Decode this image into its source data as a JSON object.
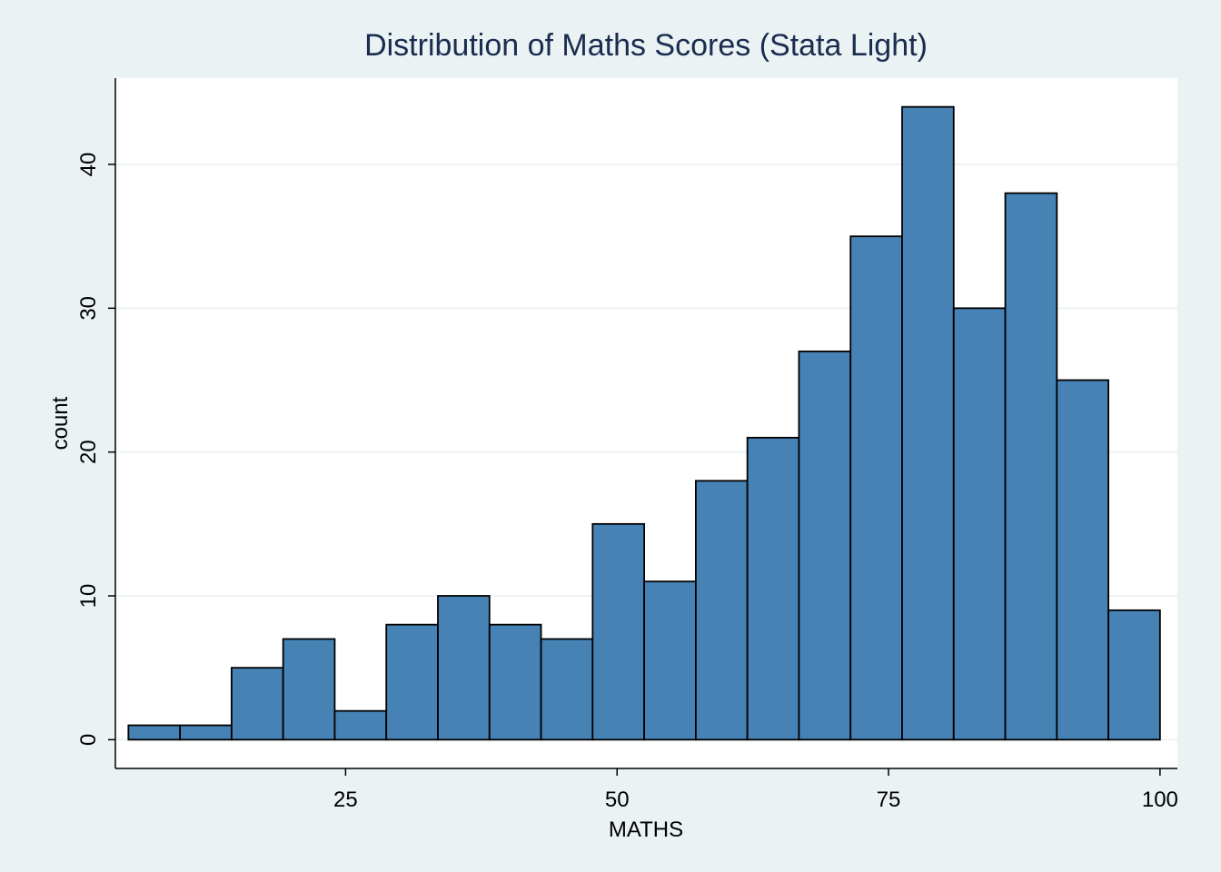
{
  "chart_data": {
    "type": "bar",
    "title": "Distribution of Maths Scores (Stata Light)",
    "xlabel": "MATHS",
    "ylabel": "count",
    "xlim": [
      3.8,
      101.6
    ],
    "ylim": [
      -2.0,
      46.0
    ],
    "x_ticks": [
      25,
      50,
      75,
      100
    ],
    "y_ticks": [
      0,
      10,
      20,
      30,
      40
    ],
    "grid": "horizontal",
    "bins": [
      {
        "x0": 5.0,
        "x1": 9.75,
        "count": 1
      },
      {
        "x0": 9.75,
        "x1": 14.5,
        "count": 1
      },
      {
        "x0": 14.5,
        "x1": 19.25,
        "count": 5
      },
      {
        "x0": 19.25,
        "x1": 24.0,
        "count": 7
      },
      {
        "x0": 24.0,
        "x1": 28.75,
        "count": 2
      },
      {
        "x0": 28.75,
        "x1": 33.5,
        "count": 8
      },
      {
        "x0": 33.5,
        "x1": 38.25,
        "count": 10
      },
      {
        "x0": 38.25,
        "x1": 43.0,
        "count": 8
      },
      {
        "x0": 43.0,
        "x1": 47.75,
        "count": 7
      },
      {
        "x0": 47.75,
        "x1": 52.5,
        "count": 15
      },
      {
        "x0": 52.5,
        "x1": 57.25,
        "count": 11
      },
      {
        "x0": 57.25,
        "x1": 62.0,
        "count": 18
      },
      {
        "x0": 62.0,
        "x1": 66.75,
        "count": 21
      },
      {
        "x0": 66.75,
        "x1": 71.5,
        "count": 27
      },
      {
        "x0": 71.5,
        "x1": 76.25,
        "count": 35
      },
      {
        "x0": 76.25,
        "x1": 81.0,
        "count": 44
      },
      {
        "x0": 81.0,
        "x1": 85.75,
        "count": 30
      },
      {
        "x0": 85.75,
        "x1": 90.5,
        "count": 38
      },
      {
        "x0": 90.5,
        "x1": 95.25,
        "count": 25
      },
      {
        "x0": 95.25,
        "x1": 100.0,
        "count": 9
      }
    ],
    "colors": {
      "bar_fill": "#4682b4",
      "bar_edge": "#000000",
      "plot_background": "#ffffff",
      "figure_background": "#eaf2f3",
      "title": "#1a2c4f"
    }
  }
}
